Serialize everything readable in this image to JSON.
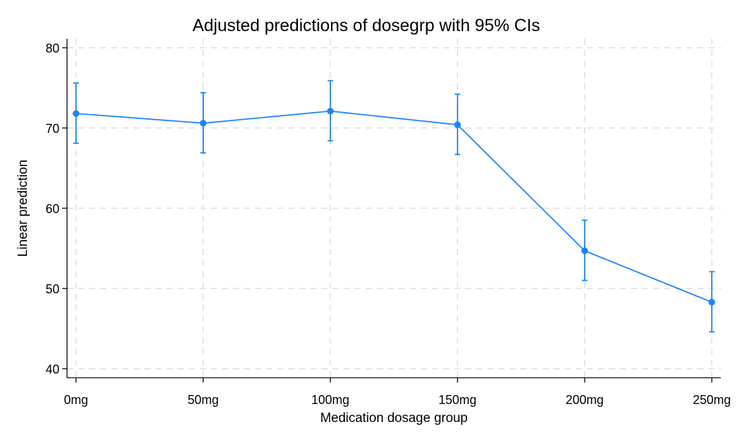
{
  "chart_data": {
    "type": "line",
    "title": "Adjusted predictions of dosegrp with 95% CIs",
    "xlabel": "Medication dosage group",
    "ylabel": "Linear prediction",
    "categories": [
      "0mg",
      "50mg",
      "100mg",
      "150mg",
      "200mg",
      "250mg"
    ],
    "series": [
      {
        "values": [
          71.8,
          70.6,
          72.1,
          70.4,
          54.7,
          48.3
        ],
        "ci_lower": [
          68.1,
          66.9,
          68.4,
          66.7,
          51.0,
          44.6
        ],
        "ci_upper": [
          75.6,
          74.4,
          75.9,
          74.2,
          58.5,
          52.1
        ],
        "color": "#1a85ff"
      }
    ],
    "ylim": [
      40,
      80
    ],
    "yticks": [
      40,
      50,
      60,
      70,
      80
    ],
    "grid": true,
    "legend": "none"
  }
}
